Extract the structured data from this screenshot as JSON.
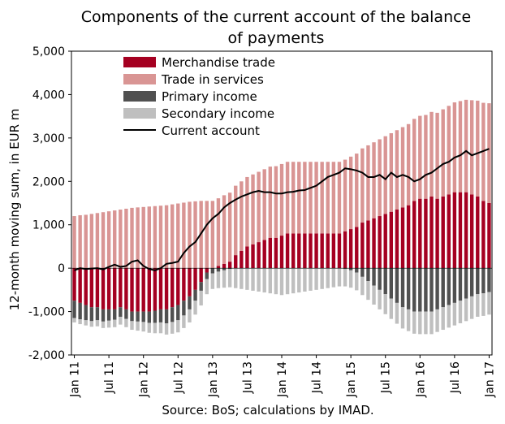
{
  "chart_data": {
    "type": "bar",
    "stacked": true,
    "title": "Components of the current account of the balance of payments",
    "title_lines": [
      "Components of the current account of the balance",
      "of payments"
    ],
    "ylabel": "12-month moving sum, in EUR m",
    "source": "Source: BoS; calculations by IMAD.",
    "ylim": [
      -2000,
      5000
    ],
    "yticks": [
      -2000,
      -1000,
      0,
      1000,
      2000,
      3000,
      4000,
      5000
    ],
    "ytick_labels": [
      "-2,000",
      "-1,000",
      "0",
      "1,000",
      "2,000",
      "3,000",
      "4,000",
      "5,000"
    ],
    "x_tick_labels": [
      "Jan 11",
      "Jul 11",
      "Jan 12",
      "Jul 12",
      "Jan 13",
      "Jul 13",
      "Jan 14",
      "Jul 14",
      "Jan 15",
      "Jul 15",
      "Jan 16",
      "Jul 16",
      "Jan 17"
    ],
    "x_tick_every": 6,
    "legend_position": "top-left",
    "grid": false,
    "categories": [
      "2011-01",
      "2011-02",
      "2011-03",
      "2011-04",
      "2011-05",
      "2011-06",
      "2011-07",
      "2011-08",
      "2011-09",
      "2011-10",
      "2011-11",
      "2011-12",
      "2012-01",
      "2012-02",
      "2012-03",
      "2012-04",
      "2012-05",
      "2012-06",
      "2012-07",
      "2012-08",
      "2012-09",
      "2012-10",
      "2012-11",
      "2012-12",
      "2013-01",
      "2013-02",
      "2013-03",
      "2013-04",
      "2013-05",
      "2013-06",
      "2013-07",
      "2013-08",
      "2013-09",
      "2013-10",
      "2013-11",
      "2013-12",
      "2014-01",
      "2014-02",
      "2014-03",
      "2014-04",
      "2014-05",
      "2014-06",
      "2014-07",
      "2014-08",
      "2014-09",
      "2014-10",
      "2014-11",
      "2014-12",
      "2015-01",
      "2015-02",
      "2015-03",
      "2015-04",
      "2015-05",
      "2015-06",
      "2015-07",
      "2015-08",
      "2015-09",
      "2015-10",
      "2015-11",
      "2015-12",
      "2016-01",
      "2016-02",
      "2016-03",
      "2016-04",
      "2016-05",
      "2016-06",
      "2016-07",
      "2016-08",
      "2016-09",
      "2016-10",
      "2016-11",
      "2016-12",
      "2017-01"
    ],
    "series": [
      {
        "name": "Merchandise trade",
        "color": "#a50021",
        "values": [
          -750,
          -800,
          -850,
          -900,
          -900,
          -950,
          -950,
          -950,
          -900,
          -950,
          -1000,
          -1000,
          -1000,
          -1000,
          -980,
          -950,
          -950,
          -900,
          -850,
          -750,
          -650,
          -500,
          -320,
          -100,
          0,
          50,
          100,
          150,
          300,
          400,
          500,
          550,
          600,
          650,
          700,
          700,
          750,
          800,
          800,
          800,
          800,
          800,
          800,
          800,
          800,
          800,
          800,
          850,
          900,
          950,
          1050,
          1100,
          1150,
          1200,
          1250,
          1300,
          1350,
          1400,
          1450,
          1550,
          1600,
          1600,
          1650,
          1600,
          1650,
          1700,
          1750,
          1750,
          1750,
          1700,
          1650,
          1550,
          1500
        ]
      },
      {
        "name": "Trade in services",
        "color": "#d99594",
        "values": [
          1200,
          1220,
          1230,
          1250,
          1270,
          1290,
          1310,
          1330,
          1350,
          1370,
          1390,
          1400,
          1410,
          1420,
          1430,
          1440,
          1450,
          1470,
          1490,
          1510,
          1530,
          1540,
          1550,
          1550,
          1550,
          1560,
          1580,
          1590,
          1600,
          1600,
          1600,
          1610,
          1620,
          1630,
          1640,
          1650,
          1650,
          1650,
          1650,
          1650,
          1650,
          1650,
          1650,
          1650,
          1650,
          1650,
          1650,
          1650,
          1670,
          1690,
          1710,
          1730,
          1750,
          1770,
          1790,
          1810,
          1830,
          1850,
          1870,
          1890,
          1910,
          1930,
          1950,
          1980,
          2010,
          2040,
          2070,
          2100,
          2130,
          2170,
          2210,
          2260,
          2300
        ]
      },
      {
        "name": "Primary income",
        "color": "#505050",
        "values": [
          -400,
          -380,
          -350,
          -320,
          -300,
          -280,
          -260,
          -240,
          -220,
          -220,
          -220,
          -230,
          -240,
          -260,
          -280,
          -300,
          -320,
          -340,
          -350,
          -340,
          -300,
          -250,
          -200,
          -150,
          -120,
          -80,
          -50,
          -20,
          -10,
          0,
          0,
          0,
          0,
          0,
          0,
          0,
          0,
          0,
          0,
          0,
          0,
          0,
          0,
          0,
          0,
          0,
          0,
          -20,
          -50,
          -100,
          -200,
          -300,
          -400,
          -500,
          -600,
          -700,
          -800,
          -900,
          -950,
          -1000,
          -1000,
          -1000,
          -1000,
          -950,
          -900,
          -850,
          -800,
          -750,
          -700,
          -650,
          -600,
          -580,
          -550
        ]
      },
      {
        "name": "Secondary income",
        "color": "#bfbfbf",
        "values": [
          -100,
          -110,
          -120,
          -130,
          -140,
          -150,
          -160,
          -170,
          -180,
          -190,
          -200,
          -210,
          -220,
          -230,
          -240,
          -250,
          -260,
          -270,
          -280,
          -290,
          -300,
          -320,
          -340,
          -350,
          -360,
          -380,
          -400,
          -420,
          -450,
          -480,
          -500,
          -520,
          -540,
          -560,
          -580,
          -600,
          -620,
          -600,
          -580,
          -560,
          -540,
          -520,
          -500,
          -480,
          -460,
          -440,
          -420,
          -400,
          -400,
          -410,
          -420,
          -430,
          -440,
          -450,
          -460,
          -470,
          -480,
          -490,
          -500,
          -510,
          -520,
          -520,
          -520,
          -520,
          -520,
          -520,
          -520,
          -520,
          -520,
          -520,
          -520,
          -520,
          -520
        ]
      }
    ],
    "line_series": {
      "name": "Current account",
      "color": "#000000",
      "values": [
        -50,
        0,
        -20,
        -10,
        0,
        -30,
        30,
        80,
        30,
        50,
        150,
        180,
        50,
        -20,
        -50,
        0,
        100,
        120,
        150,
        350,
        500,
        600,
        800,
        1000,
        1150,
        1250,
        1400,
        1500,
        1580,
        1650,
        1700,
        1750,
        1780,
        1750,
        1750,
        1720,
        1720,
        1750,
        1760,
        1790,
        1800,
        1850,
        1900,
        2000,
        2100,
        2150,
        2200,
        2300,
        2280,
        2250,
        2200,
        2100,
        2100,
        2150,
        2050,
        2200,
        2100,
        2150,
        2100,
        2000,
        2050,
        2150,
        2200,
        2300,
        2400,
        2450,
        2550,
        2600,
        2700,
        2600,
        2650,
        2700,
        2750
      ]
    }
  }
}
